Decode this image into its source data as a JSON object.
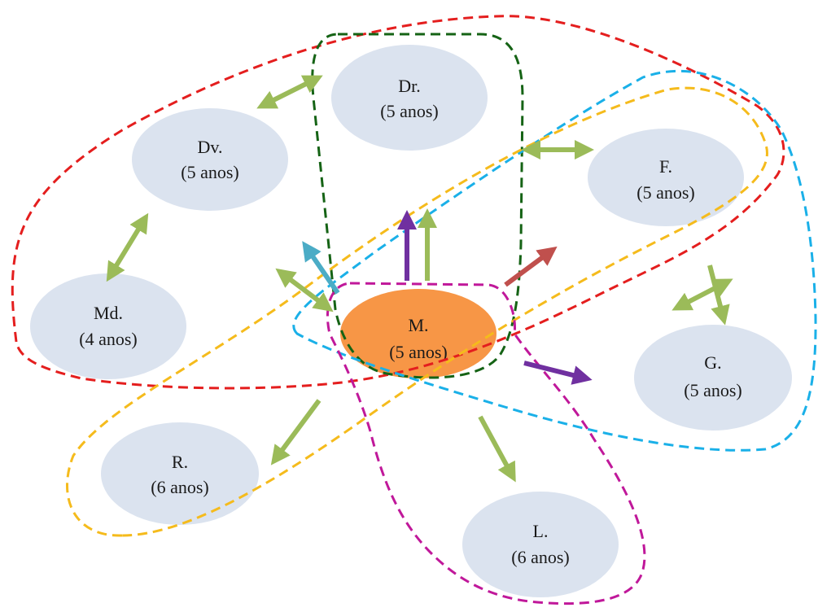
{
  "colors": {
    "child_fill": "#dbe3ef",
    "focus_fill": "#f79646",
    "group_red": "#e41e1e",
    "group_green": "#156315",
    "group_cyan": "#1ab0e8",
    "group_yellow": "#f5bb1c",
    "group_magenta": "#c0189a",
    "arrow_green": "#9bbb59",
    "arrow_purple": "#7030a0",
    "arrow_teal": "#4bacc6",
    "arrow_red": "#c0504d"
  },
  "nodes": [
    {
      "id": "dr",
      "name": "Dr.",
      "age": "(5 anos)"
    },
    {
      "id": "dv",
      "name": "Dv.",
      "age": "(5 anos)"
    },
    {
      "id": "f",
      "name": "F.",
      "age": "(5 anos)"
    },
    {
      "id": "md",
      "name": "Md.",
      "age": "(4 anos)"
    },
    {
      "id": "m",
      "name": "M.",
      "age": "(5 anos)"
    },
    {
      "id": "g",
      "name": "G.",
      "age": "(5 anos)"
    },
    {
      "id": "r",
      "name": "R.",
      "age": "(6 anos)"
    },
    {
      "id": "l",
      "name": "L.",
      "age": "(6 anos)"
    }
  ]
}
